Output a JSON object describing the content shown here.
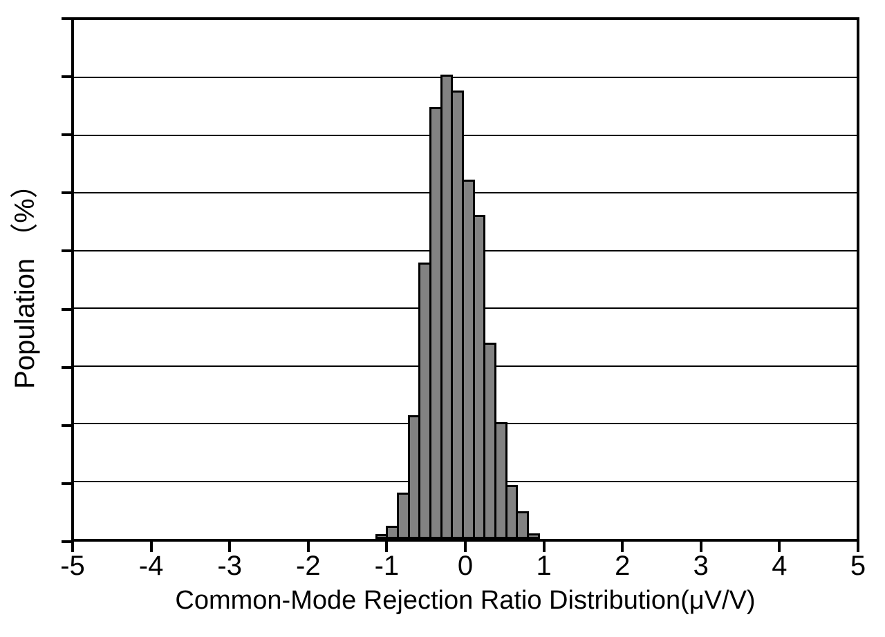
{
  "chart": {
    "x_label": "Common-Mode Rejection Ratio Distribution(μV/V)",
    "y_label": "Population （%）"
  },
  "chart_data": {
    "type": "bar",
    "subtype": "histogram",
    "title": "",
    "xlabel": "Common-Mode Rejection Ratio Distribution(μV/V)",
    "ylabel": "Population （%）",
    "xlim": [
      -5,
      5
    ],
    "ylim": [
      0,
      18
    ],
    "x_tick_values": [
      -5,
      -4,
      -3,
      -2,
      -1,
      0,
      1,
      2,
      3,
      4,
      5
    ],
    "x_tick_labels": [
      "-5",
      "-4",
      "-3",
      "-2",
      "-1",
      "0",
      "1",
      "2",
      "3",
      "4",
      "5"
    ],
    "y_ticks_labeled": false,
    "y_gridline_step": 2,
    "grid": "horizontal",
    "legend": "none",
    "bin_start": -1.139,
    "bin_width": 0.1385,
    "bin_centers": [
      -1.07,
      -0.93,
      -0.79,
      -0.65,
      -0.52,
      -0.38,
      -0.24,
      -0.1,
      0.04,
      0.18,
      0.32,
      0.45,
      0.59,
      0.73,
      0.87
    ],
    "values_percent": [
      0.17,
      0.45,
      1.6,
      4.29,
      9.58,
      14.98,
      16.11,
      15.55,
      12.47,
      11.25,
      6.81,
      4.05,
      1.87,
      0.97,
      0.2
    ]
  },
  "colors": {
    "background": "#ffffff",
    "bar_fill": "#828282",
    "bar_outline": "#000000",
    "axis": "#000000",
    "gridline": "#000000",
    "text": "#000000"
  }
}
